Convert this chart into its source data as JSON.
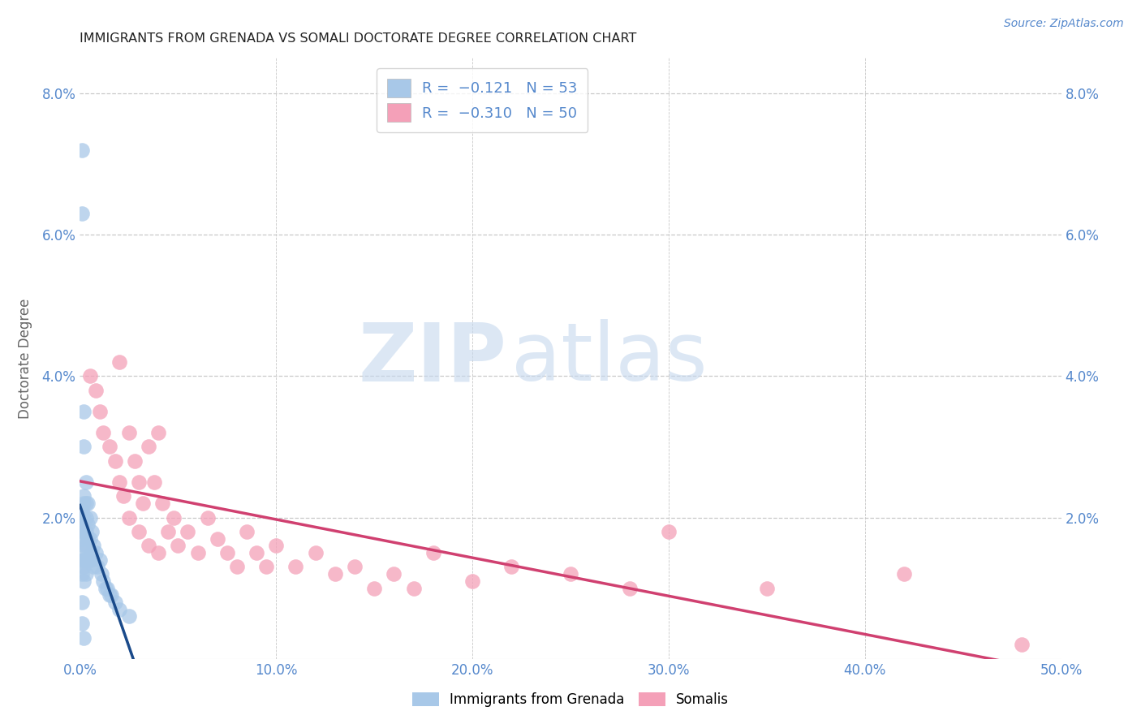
{
  "title": "IMMIGRANTS FROM GRENADA VS SOMALI DOCTORATE DEGREE CORRELATION CHART",
  "source": "Source: ZipAtlas.com",
  "ylabel_label": "Doctorate Degree",
  "xlim": [
    0.0,
    0.5
  ],
  "ylim": [
    0.0,
    0.085
  ],
  "xticks": [
    0.0,
    0.1,
    0.2,
    0.3,
    0.4,
    0.5
  ],
  "xtick_labels": [
    "0.0%",
    "10.0%",
    "20.0%",
    "30.0%",
    "40.0%",
    "50.0%"
  ],
  "yticks": [
    0.0,
    0.02,
    0.04,
    0.06,
    0.08
  ],
  "ytick_labels": [
    "",
    "2.0%",
    "4.0%",
    "6.0%",
    "8.0%"
  ],
  "color_blue": "#a8c8e8",
  "color_pink": "#f4a0b8",
  "trendline_blue": "#1a4a8a",
  "trendline_pink": "#d04070",
  "trendline_dashed_blue": "#90b0d0",
  "watermark_zip": "ZIP",
  "watermark_atlas": "atlas",
  "background_color": "#ffffff",
  "grid_color": "#c8c8c8",
  "title_color": "#222222",
  "axis_tick_color": "#5588cc",
  "ylabel_color": "#666666",
  "blue_x": [
    0.001,
    0.001,
    0.001,
    0.001,
    0.001,
    0.001,
    0.001,
    0.001,
    0.001,
    0.001,
    0.002,
    0.002,
    0.002,
    0.002,
    0.002,
    0.002,
    0.002,
    0.002,
    0.002,
    0.002,
    0.003,
    0.003,
    0.003,
    0.003,
    0.003,
    0.003,
    0.003,
    0.004,
    0.004,
    0.004,
    0.004,
    0.005,
    0.005,
    0.005,
    0.006,
    0.006,
    0.007,
    0.007,
    0.008,
    0.009,
    0.01,
    0.011,
    0.012,
    0.013,
    0.014,
    0.015,
    0.016,
    0.018,
    0.02,
    0.025,
    0.001,
    0.001,
    0.002
  ],
  "blue_y": [
    0.072,
    0.063,
    0.021,
    0.02,
    0.019,
    0.018,
    0.017,
    0.015,
    0.014,
    0.012,
    0.035,
    0.03,
    0.023,
    0.022,
    0.02,
    0.018,
    0.016,
    0.014,
    0.013,
    0.011,
    0.025,
    0.022,
    0.02,
    0.018,
    0.016,
    0.014,
    0.012,
    0.022,
    0.019,
    0.017,
    0.014,
    0.02,
    0.017,
    0.014,
    0.018,
    0.015,
    0.016,
    0.013,
    0.015,
    0.013,
    0.014,
    0.012,
    0.011,
    0.01,
    0.01,
    0.009,
    0.009,
    0.008,
    0.007,
    0.006,
    0.008,
    0.005,
    0.003
  ],
  "pink_x": [
    0.005,
    0.008,
    0.01,
    0.012,
    0.015,
    0.018,
    0.02,
    0.02,
    0.022,
    0.025,
    0.025,
    0.028,
    0.03,
    0.03,
    0.032,
    0.035,
    0.035,
    0.038,
    0.04,
    0.04,
    0.042,
    0.045,
    0.048,
    0.05,
    0.055,
    0.06,
    0.065,
    0.07,
    0.075,
    0.08,
    0.085,
    0.09,
    0.095,
    0.1,
    0.11,
    0.12,
    0.13,
    0.14,
    0.15,
    0.16,
    0.17,
    0.18,
    0.2,
    0.22,
    0.25,
    0.28,
    0.3,
    0.35,
    0.42,
    0.48
  ],
  "pink_y": [
    0.04,
    0.038,
    0.035,
    0.032,
    0.03,
    0.028,
    0.042,
    0.025,
    0.023,
    0.032,
    0.02,
    0.028,
    0.025,
    0.018,
    0.022,
    0.03,
    0.016,
    0.025,
    0.032,
    0.015,
    0.022,
    0.018,
    0.02,
    0.016,
    0.018,
    0.015,
    0.02,
    0.017,
    0.015,
    0.013,
    0.018,
    0.015,
    0.013,
    0.016,
    0.013,
    0.015,
    0.012,
    0.013,
    0.01,
    0.012,
    0.01,
    0.015,
    0.011,
    0.013,
    0.012,
    0.01,
    0.018,
    0.01,
    0.012,
    0.002
  ]
}
